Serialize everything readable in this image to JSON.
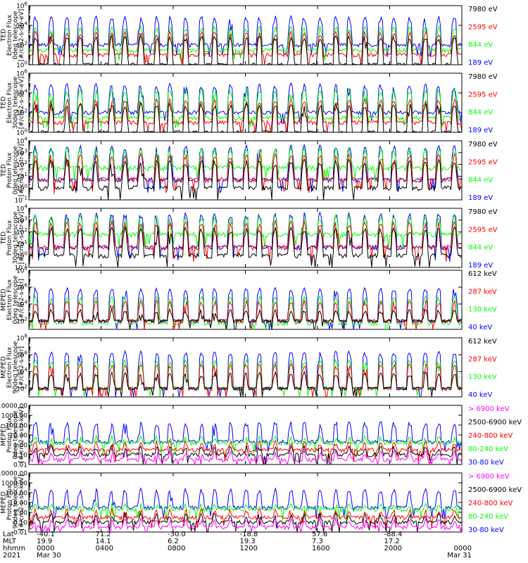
{
  "chart_data": [
    {
      "type": "line",
      "ylabel_lines": [
        "TED",
        "Electron Flux",
        "0deg telescope",
        "[#/cm2-s-str-eV]"
      ],
      "yscale": "log",
      "ylim": [
        1,
        1000000
      ],
      "yticks": [
        "10^0",
        "10^2",
        "10^4",
        "10^6"
      ],
      "series": [
        {
          "name": "7980 eV",
          "color": "#000000",
          "base": 1,
          "spikes": 1000
        },
        {
          "name": "2595 eV",
          "color": "#ff0000",
          "base": 10,
          "spikes": 3000
        },
        {
          "name": "844 eV",
          "color": "#00ff00",
          "base": 30,
          "spikes": 10000
        },
        {
          "name": "189 eV",
          "color": "#0000ff",
          "base": 100,
          "spikes": 100000
        }
      ]
    },
    {
      "type": "line",
      "ylabel_lines": [
        "TED",
        "Electron Flux",
        "30deg telescope",
        "[#/cm2-s-str-eV]"
      ],
      "yscale": "log",
      "ylim": [
        1,
        1000000
      ],
      "yticks": [
        "10^0",
        "10^2",
        "10^4",
        "10^6"
      ],
      "series": [
        {
          "name": "7980 eV",
          "color": "#000000",
          "base": 1,
          "spikes": 1000
        },
        {
          "name": "2595 eV",
          "color": "#ff0000",
          "base": 10,
          "spikes": 3000
        },
        {
          "name": "844 eV",
          "color": "#00ff00",
          "base": 30,
          "spikes": 30000
        },
        {
          "name": "189 eV",
          "color": "#0000ff",
          "base": 100,
          "spikes": 100000
        }
      ]
    },
    {
      "type": "line",
      "ylabel_lines": [
        "TED",
        "Proton Flux",
        "0deg telescope",
        "[#/cm2-s-str-eV]"
      ],
      "yscale": "log",
      "ylim": [
        0.1,
        10000
      ],
      "yticks": [
        "10^-1",
        "10^0",
        "10^1",
        "10^2",
        "10^3",
        "10^4"
      ],
      "series": [
        {
          "name": "7980 eV",
          "color": "#000000",
          "base": 1,
          "spikes": 300
        },
        {
          "name": "2595 eV",
          "color": "#ff0000",
          "base": 5,
          "spikes": 1000
        },
        {
          "name": "844 eV",
          "color": "#00ff00",
          "base": 50,
          "spikes": 3000
        },
        {
          "name": "189 eV",
          "color": "#0000ff",
          "base": 5,
          "spikes": 5000
        }
      ]
    },
    {
      "type": "line",
      "ylabel_lines": [
        "TED",
        "Proton Flux",
        "30deg telescope",
        "[#/cm2-s-str-eV]"
      ],
      "yscale": "log",
      "ylim": [
        0.1,
        10000
      ],
      "yticks": [
        "10^-1",
        "10^0",
        "10^1",
        "10^2",
        "10^3",
        "10^4"
      ],
      "series": [
        {
          "name": "7980 eV",
          "color": "#000000",
          "base": 1,
          "spikes": 300
        },
        {
          "name": "2595 eV",
          "color": "#ff0000",
          "base": 5,
          "spikes": 1000
        },
        {
          "name": "844 eV",
          "color": "#00ff00",
          "base": 60,
          "spikes": 3000
        },
        {
          "name": "189 eV",
          "color": "#0000ff",
          "base": 5,
          "spikes": 5000
        }
      ]
    },
    {
      "type": "line",
      "ylabel_lines": [
        "MEPED",
        "Electron Flux",
        "0deg telescope",
        "[#/cm2-s-str]"
      ],
      "yscale": "log",
      "ylim": [
        10,
        100000000
      ],
      "yticks": [
        "10^2",
        "10^4",
        "10^6",
        "10^8"
      ],
      "series": [
        {
          "name": "612 keV",
          "color": "#000000",
          "base": 100,
          "spikes": 3000
        },
        {
          "name": "287 keV",
          "color": "#ff0000",
          "base": 100,
          "spikes": 30000
        },
        {
          "name": "130 keV",
          "color": "#00ff00",
          "base": 50,
          "spikes": 100000
        },
        {
          "name": "40 keV",
          "color": "#0000ff",
          "base": 100,
          "spikes": 1000000
        }
      ]
    },
    {
      "type": "line",
      "ylabel_lines": [
        "MEPED",
        "Electron Flux",
        "90deg telescope",
        "[#/cm2-s-str]"
      ],
      "yscale": "log",
      "ylim": [
        10,
        100000000
      ],
      "yticks": [
        "10^2",
        "10^4",
        "10^6",
        "10^8"
      ],
      "series": [
        {
          "name": "612 keV",
          "color": "#000000",
          "base": 100,
          "spikes": 10000
        },
        {
          "name": "287 keV",
          "color": "#ff0000",
          "base": 100,
          "spikes": 100000
        },
        {
          "name": "130 keV",
          "color": "#00ff00",
          "base": 100,
          "spikes": 300000
        },
        {
          "name": "40 keV",
          "color": "#0000ff",
          "base": 100,
          "spikes": 3000000
        }
      ]
    },
    {
      "type": "line",
      "ylabel_lines": [
        "MEPED",
        "Proton Flux",
        "0deg telescope",
        "[#/cm2-s-str-keV]"
      ],
      "yscale": "log",
      "ylim": [
        0.01,
        10000
      ],
      "yticks": [
        "0.01",
        "0.10",
        "1.00",
        "10.00",
        "100.00",
        "1000.00",
        "10000.00"
      ],
      "series": [
        {
          "name": "> 6900 keV",
          "color": "#ff00ff",
          "base": 0.03,
          "spikes": 0.3
        },
        {
          "name": "2500-6900 keV",
          "color": "#000000",
          "base": 0.1,
          "spikes": 1
        },
        {
          "name": "240-800 keV",
          "color": "#ff0000",
          "base": 0.3,
          "spikes": 3
        },
        {
          "name": "80-240 keV",
          "color": "#00ff00",
          "base": 1.5,
          "spikes": 10
        },
        {
          "name": "30-80 keV",
          "color": "#0000ff",
          "base": 2,
          "spikes": 300
        }
      ]
    },
    {
      "type": "line",
      "ylabel_lines": [
        "MEPED",
        "Proton Flux",
        "90deg telescope",
        "[#/cm2-s-str-keV]"
      ],
      "yscale": "log",
      "ylim": [
        0.01,
        10000
      ],
      "yticks": [
        "0.01",
        "0.10",
        "1.00",
        "10.00",
        "100.00",
        "1000.00",
        "10000.00"
      ],
      "series": [
        {
          "name": "> 6900 keV",
          "color": "#ff00ff",
          "base": 0.03,
          "spikes": 0.3
        },
        {
          "name": "2500-6900 keV",
          "color": "#000000",
          "base": 0.1,
          "spikes": 1
        },
        {
          "name": "240-800 keV",
          "color": "#ff0000",
          "base": 0.3,
          "spikes": 3
        },
        {
          "name": "80-240 keV",
          "color": "#00ff00",
          "base": 2,
          "spikes": 10
        },
        {
          "name": "30-80 keV",
          "color": "#0000ff",
          "base": 3,
          "spikes": 300
        }
      ]
    }
  ],
  "x_axis": {
    "row_labels": [
      "Lat",
      "MLT",
      "hhmm",
      "2021"
    ],
    "columns": [
      {
        "lat": "-40.1",
        "mlt": "19.9",
        "hhmm": "0000",
        "date": "Mar 30"
      },
      {
        "lat": "71.2",
        "mlt": "14.1",
        "hhmm": "0400",
        "date": ""
      },
      {
        "lat": "-30.0",
        "mlt": "6.2",
        "hhmm": "0800",
        "date": ""
      },
      {
        "lat": "-18.8",
        "mlt": "19.3",
        "hhmm": "1200",
        "date": ""
      },
      {
        "lat": "57.6",
        "mlt": "7.3",
        "hhmm": "1600",
        "date": ""
      },
      {
        "lat": "-88.4",
        "mlt": "17.2",
        "hhmm": "2000",
        "date": ""
      },
      {
        "lat": "",
        "mlt": "",
        "hhmm": "0000",
        "date": "Mar 31"
      }
    ]
  }
}
